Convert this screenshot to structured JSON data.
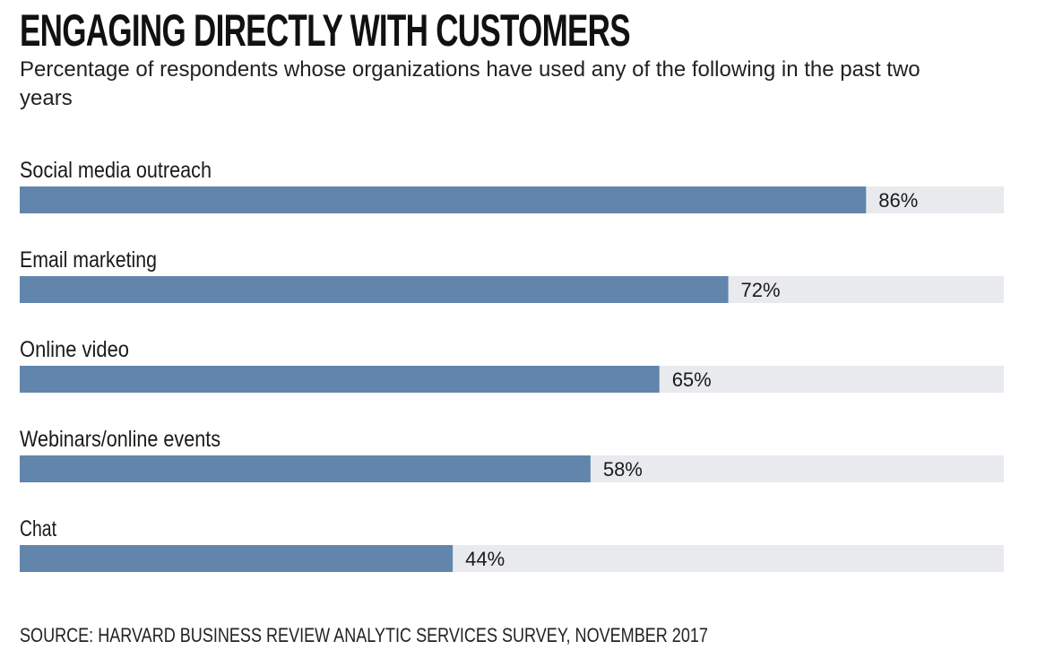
{
  "chart_data": {
    "type": "bar",
    "orientation": "horizontal",
    "title": "ENGAGING DIRECTLY WITH CUSTOMERS",
    "subtitle": "Percentage of respondents whose organizations have used any of the following in the past two years",
    "categories": [
      "Social media outreach",
      "Email marketing",
      "Online video",
      "Webinars/online events",
      "Chat"
    ],
    "values": [
      86,
      72,
      65,
      58,
      44
    ],
    "value_labels": [
      "86%",
      "72%",
      "65%",
      "58%",
      "44%"
    ],
    "unit": "%",
    "xlim": [
      0,
      100
    ],
    "grid": false,
    "legend": "none",
    "source": "SOURCE: HARVARD BUSINESS REVIEW ANALYTIC SERVICES SURVEY, NOVEMBER 2017"
  },
  "colors": {
    "bar": "#6285ab",
    "track": "#e8eaed"
  }
}
